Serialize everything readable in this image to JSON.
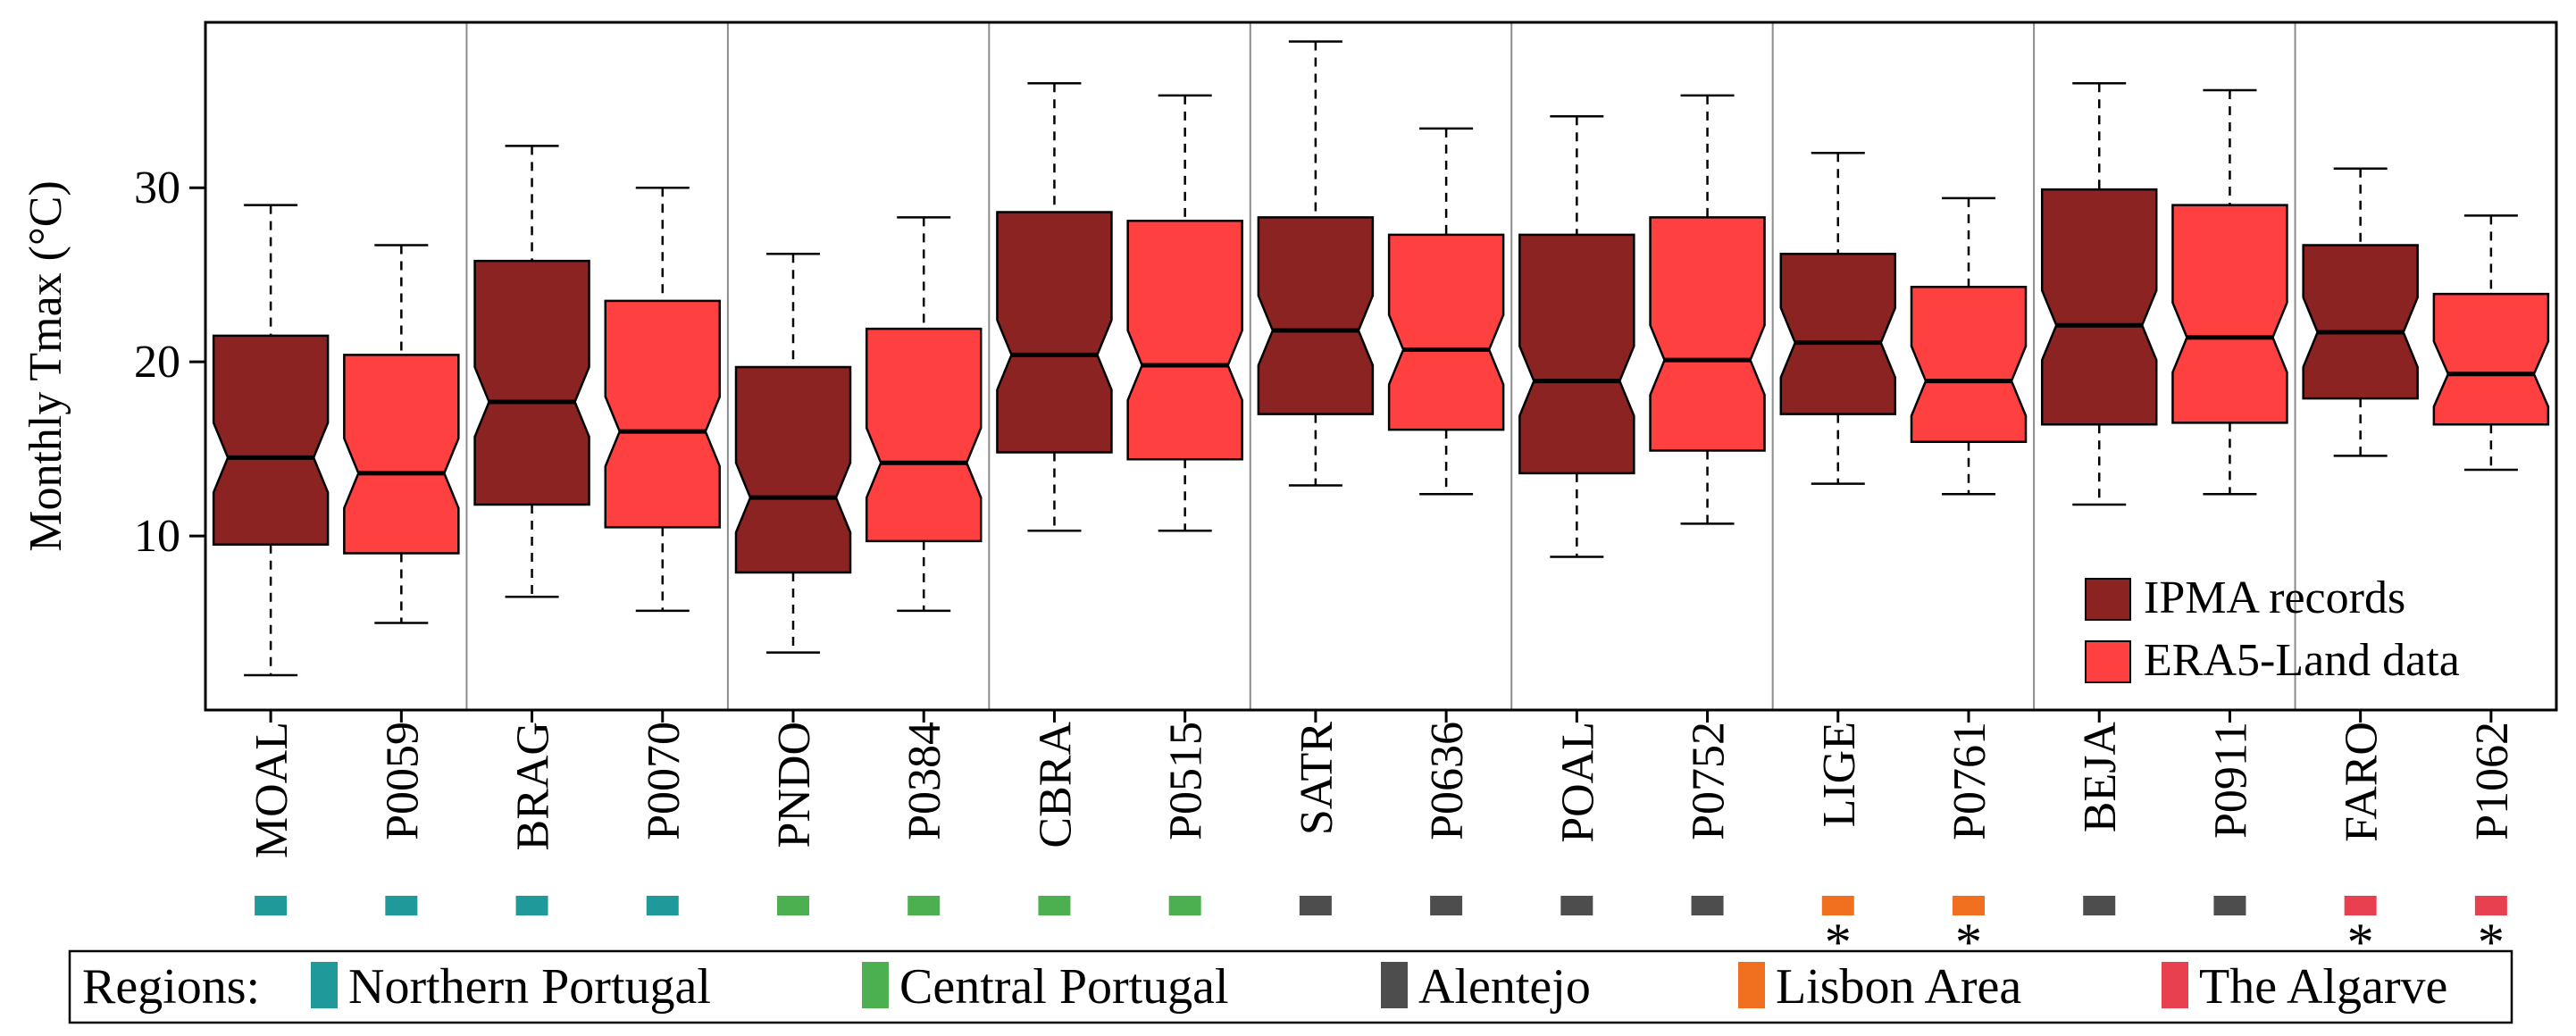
{
  "chart_data": {
    "type": "boxplot",
    "ylabel": "Monthly Tmax (°C)",
    "ylim": [
      0,
      39.5
    ],
    "yticks": [
      10,
      20,
      30
    ],
    "grid": false,
    "notched": true,
    "legend_position": "bottom-right",
    "colors": {
      "IPMA records": "#8B2323",
      "ERA5-Land data": "#FF4040"
    },
    "series": [
      {
        "name": "IPMA records",
        "color": "#8B2323"
      },
      {
        "name": "ERA5-Land data",
        "color": "#FF4040"
      }
    ],
    "regions_title": "Regions:",
    "regions": [
      {
        "name": "Northern Portugal",
        "color": "#20999A"
      },
      {
        "name": "Central Portugal",
        "color": "#4CAF50"
      },
      {
        "name": "Alentejo",
        "color": "#4D4D4D"
      },
      {
        "name": "Lisbon Area",
        "color": "#F07020"
      },
      {
        "name": "The Algarve",
        "color": "#E8404F"
      }
    ],
    "categories": [
      {
        "label": "MOAL",
        "series": "IPMA records",
        "region": "Northern Portugal",
        "significant": false,
        "whisker_low": 2.0,
        "q1": 9.5,
        "median": 14.5,
        "q3": 21.5,
        "whisker_high": 29.0
      },
      {
        "label": "P0059",
        "series": "ERA5-Land data",
        "region": "Northern Portugal",
        "significant": false,
        "whisker_low": 5.0,
        "q1": 9.0,
        "median": 13.6,
        "q3": 20.4,
        "whisker_high": 26.7
      },
      {
        "label": "BRAG",
        "series": "IPMA records",
        "region": "Northern Portugal",
        "significant": false,
        "whisker_low": 6.5,
        "q1": 11.8,
        "median": 17.7,
        "q3": 25.8,
        "whisker_high": 32.4
      },
      {
        "label": "P0070",
        "series": "ERA5-Land data",
        "region": "Northern Portugal",
        "significant": false,
        "whisker_low": 5.7,
        "q1": 10.5,
        "median": 16.0,
        "q3": 23.5,
        "whisker_high": 30.0
      },
      {
        "label": "PNDO",
        "series": "IPMA records",
        "region": "Central Portugal",
        "significant": false,
        "whisker_low": 3.3,
        "q1": 7.9,
        "median": 12.2,
        "q3": 19.7,
        "whisker_high": 26.2
      },
      {
        "label": "P0384",
        "series": "ERA5-Land data",
        "region": "Central Portugal",
        "significant": false,
        "whisker_low": 5.7,
        "q1": 9.7,
        "median": 14.2,
        "q3": 21.9,
        "whisker_high": 28.3
      },
      {
        "label": "CBRA",
        "series": "IPMA records",
        "region": "Central Portugal",
        "significant": false,
        "whisker_low": 10.3,
        "q1": 14.8,
        "median": 20.4,
        "q3": 28.6,
        "whisker_high": 36.0
      },
      {
        "label": "P0515",
        "series": "ERA5-Land data",
        "region": "Central Portugal",
        "significant": false,
        "whisker_low": 10.3,
        "q1": 14.4,
        "median": 19.8,
        "q3": 28.1,
        "whisker_high": 35.3
      },
      {
        "label": "SATR",
        "series": "IPMA records",
        "region": "Alentejo",
        "significant": false,
        "whisker_low": 12.9,
        "q1": 17.0,
        "median": 21.8,
        "q3": 28.3,
        "whisker_high": 38.4
      },
      {
        "label": "P0636",
        "series": "ERA5-Land data",
        "region": "Alentejo",
        "significant": false,
        "whisker_low": 12.4,
        "q1": 16.1,
        "median": 20.7,
        "q3": 27.3,
        "whisker_high": 33.4
      },
      {
        "label": "POAL",
        "series": "IPMA records",
        "region": "Alentejo",
        "significant": false,
        "whisker_low": 8.8,
        "q1": 13.6,
        "median": 18.9,
        "q3": 27.3,
        "whisker_high": 34.1
      },
      {
        "label": "P0752",
        "series": "ERA5-Land data",
        "region": "Alentejo",
        "significant": false,
        "whisker_low": 10.7,
        "q1": 14.9,
        "median": 20.1,
        "q3": 28.3,
        "whisker_high": 35.3
      },
      {
        "label": "LIGE",
        "series": "IPMA records",
        "region": "Lisbon Area",
        "significant": true,
        "whisker_low": 13.0,
        "q1": 17.0,
        "median": 21.1,
        "q3": 26.2,
        "whisker_high": 32.0
      },
      {
        "label": "P0761",
        "series": "ERA5-Land data",
        "region": "Lisbon Area",
        "significant": true,
        "whisker_low": 12.4,
        "q1": 15.4,
        "median": 18.9,
        "q3": 24.3,
        "whisker_high": 29.4
      },
      {
        "label": "BEJA",
        "series": "IPMA records",
        "region": "Alentejo",
        "significant": false,
        "whisker_low": 11.8,
        "q1": 16.4,
        "median": 22.1,
        "q3": 29.9,
        "whisker_high": 36.0
      },
      {
        "label": "P0911",
        "series": "ERA5-Land data",
        "region": "Alentejo",
        "significant": false,
        "whisker_low": 12.4,
        "q1": 16.5,
        "median": 21.4,
        "q3": 29.0,
        "whisker_high": 35.6
      },
      {
        "label": "FARO",
        "series": "IPMA records",
        "region": "The Algarve",
        "significant": true,
        "whisker_low": 14.6,
        "q1": 17.9,
        "median": 21.7,
        "q3": 26.7,
        "whisker_high": 31.1
      },
      {
        "label": "P1062",
        "series": "ERA5-Land data",
        "region": "The Algarve",
        "significant": true,
        "whisker_low": 13.8,
        "q1": 16.4,
        "median": 19.3,
        "q3": 23.9,
        "whisker_high": 28.4
      }
    ],
    "significance_marker": "*"
  }
}
